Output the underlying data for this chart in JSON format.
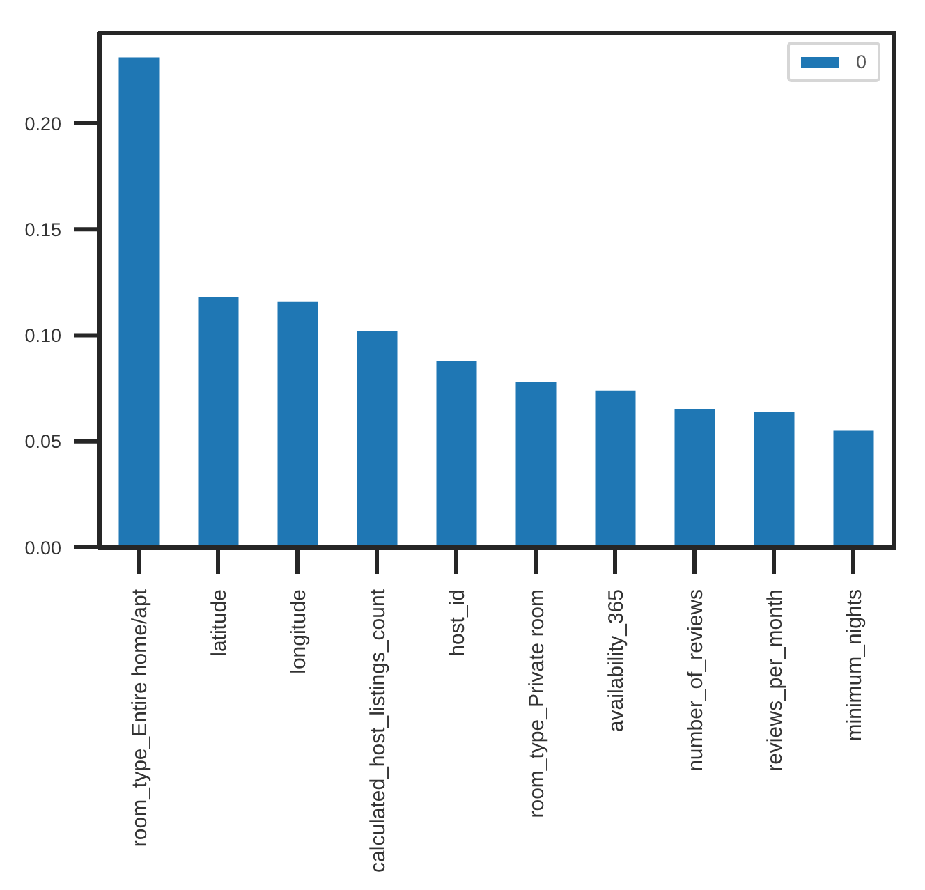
{
  "chart_data": {
    "type": "bar",
    "categories": [
      "room_type_Entire home/apt",
      "latitude",
      "longitude",
      "calculated_host_listings_count",
      "host_id",
      "room_type_Private room",
      "availability_365",
      "number_of_reviews",
      "reviews_per_month",
      "minimum_nights"
    ],
    "series": [
      {
        "name": "0",
        "color": "#1f77b4",
        "values": [
          0.231,
          0.118,
          0.116,
          0.102,
          0.088,
          0.078,
          0.074,
          0.065,
          0.064,
          0.055
        ]
      }
    ],
    "ylim": [
      0,
      0.243
    ],
    "yticks": [
      {
        "value": 0,
        "label": "0.00"
      },
      0.05,
      {
        "value": 0.1,
        "label": "0.10"
      },
      0.15,
      {
        "value": 0.2,
        "label": "0.20"
      }
    ],
    "legend": "top right"
  }
}
